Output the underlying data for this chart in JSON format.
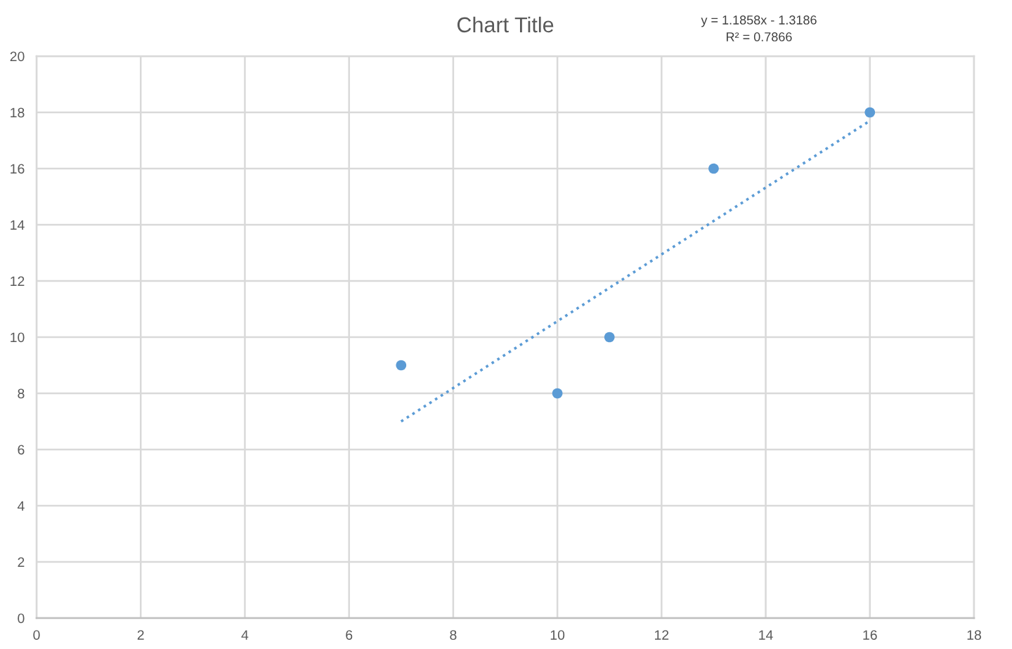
{
  "chart_data": {
    "type": "scatter",
    "title": "Chart Title",
    "annotations": [
      "y = 1.1858x - 1.3186",
      "R² = 0.7866"
    ],
    "xlim": [
      0,
      18
    ],
    "ylim": [
      0,
      20
    ],
    "xticks": [
      0,
      2,
      4,
      6,
      8,
      10,
      12,
      14,
      16,
      18
    ],
    "yticks": [
      0,
      2,
      4,
      6,
      8,
      10,
      12,
      14,
      16,
      18,
      20
    ],
    "grid": true,
    "marker": "circle",
    "series": [
      {
        "color": "#5b9bd5",
        "x": [
          7,
          10,
          11,
          13,
          16
        ],
        "values": [
          9,
          8,
          10,
          16,
          18
        ]
      },
      {
        "type": "line",
        "color": "#5b9bd5",
        "line_style": "dotted",
        "marker": "none",
        "x": [
          7,
          16
        ],
        "values": [
          7.0,
          17.7
        ]
      }
    ]
  }
}
